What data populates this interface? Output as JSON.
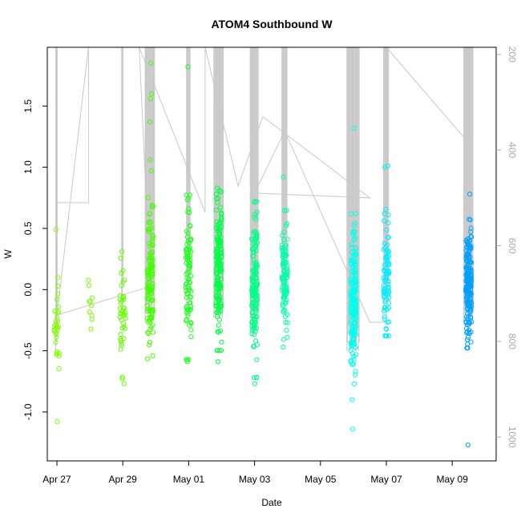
{
  "chart_data": {
    "type": "scatter",
    "title": "ATOM4 Southbound W",
    "xlabel": "Date",
    "ylabel": "W",
    "x_axis": {
      "type": "date",
      "min": "2023-04-26T17:00",
      "max": "2023-05-10T08:00",
      "ticks": [
        {
          "value": "2023-04-27",
          "label": "Apr 27"
        },
        {
          "value": "2023-04-29",
          "label": "Apr 29"
        },
        {
          "value": "2023-05-01",
          "label": "May 01"
        },
        {
          "value": "2023-05-03",
          "label": "May 03"
        },
        {
          "value": "2023-05-05",
          "label": "May 05"
        },
        {
          "value": "2023-05-07",
          "label": "May 07"
        },
        {
          "value": "2023-05-09",
          "label": "May 09"
        }
      ]
    },
    "y_axis": {
      "min": -1.4,
      "max": 1.98,
      "ticks": [
        -1.0,
        -0.5,
        0.0,
        0.5,
        1.0,
        1.5
      ]
    },
    "y2_axis": {
      "min": 1050,
      "max": 185,
      "reversed": true,
      "ticks": [
        200,
        400,
        600,
        800,
        1000
      ],
      "color": "#aaaaaa"
    },
    "grid": false,
    "legend": "none",
    "bursts": [
      {
        "t": "2023-04-27T00:00",
        "count": 32,
        "mean": -0.25,
        "sd": 0.25,
        "outliers": [
          0.49,
          -1.08
        ],
        "color": "#80ff00"
      },
      {
        "t": "2023-04-28T00:00",
        "count": 10,
        "mean": -0.2,
        "sd": 0.18,
        "outliers": [],
        "color": "#77ff00"
      },
      {
        "t": "2023-04-29T00:00",
        "count": 40,
        "mean": -0.15,
        "sd": 0.28,
        "outliers": [
          0.31,
          -0.77
        ],
        "color": "#66ff00"
      },
      {
        "t": "2023-04-29T20:00",
        "count": 120,
        "mean": 0.08,
        "sd": 0.28,
        "outliers": [
          1.85,
          1.6,
          1.56,
          1.37,
          1.06,
          0.97
        ],
        "color": "#44ff00"
      },
      {
        "t": "2023-05-01T00:00",
        "count": 90,
        "mean": 0.1,
        "sd": 0.28,
        "outliers": [
          1.82,
          0.66,
          -0.59
        ],
        "color": "#22ff22"
      },
      {
        "t": "2023-05-01T22:00",
        "count": 160,
        "mean": 0.15,
        "sd": 0.27,
        "outliers": [
          0.83,
          0.81,
          -0.59
        ],
        "color": "#00ff44"
      },
      {
        "t": "2023-05-03T00:00",
        "count": 150,
        "mean": 0.0,
        "sd": 0.3,
        "outliers": [
          0.59,
          -0.77
        ],
        "color": "#00ff88"
      },
      {
        "t": "2023-05-03T22:00",
        "count": 100,
        "mean": 0.12,
        "sd": 0.22,
        "outliers": [
          0.92,
          -0.47
        ],
        "color": "#00ffaa"
      },
      {
        "t": "2023-05-06T00:00",
        "count": 190,
        "mean": -0.1,
        "sd": 0.3,
        "outliers": [
          1.32,
          -1.14,
          -0.9
        ],
        "color": "#00ffee"
      },
      {
        "t": "2023-05-07T00:00",
        "count": 80,
        "mean": 0.15,
        "sd": 0.22,
        "outliers": [
          1.0,
          1.01,
          -0.32
        ],
        "color": "#00eeff"
      },
      {
        "t": "2023-05-09T12:00",
        "count": 200,
        "mean": 0.05,
        "sd": 0.22,
        "outliers": [
          0.78,
          -0.36,
          -1.27
        ],
        "color": "#00a0ff"
      }
    ],
    "depth_trace": {
      "color": "#c8c8c8",
      "path": [
        {
          "t": "2023-04-27T00:00",
          "d": 185
        },
        {
          "t": "2023-04-27T00:00",
          "d": 510
        },
        {
          "t": "2023-04-27T23:00",
          "d": 510
        },
        {
          "t": "2023-04-27T23:00",
          "d": 185
        },
        {
          "t": "2023-04-27T00:00",
          "d": 745
        },
        {
          "t": "2023-04-29T20:00",
          "d": 685
        },
        {
          "t": "2023-04-29T12:00",
          "d": 185
        },
        {
          "t": "2023-05-01T12:00",
          "d": 530
        },
        {
          "t": "2023-05-01T12:00",
          "d": 185
        },
        {
          "t": "2023-05-02T12:00",
          "d": 475
        },
        {
          "t": "2023-05-03T06:00",
          "d": 330
        },
        {
          "t": "2023-05-06T12:00",
          "d": 500
        },
        {
          "t": "2023-05-03T00:00",
          "d": 490
        },
        {
          "t": "2023-05-03T22:00",
          "d": 360
        },
        {
          "t": "2023-05-06T12:00",
          "d": 760
        },
        {
          "t": "2023-05-07T00:00",
          "d": 760
        },
        {
          "t": "2023-05-07T00:00",
          "d": 185
        },
        {
          "t": "2023-05-09T12:00",
          "d": 385
        },
        {
          "t": "2023-05-09T12:00",
          "d": 185
        }
      ],
      "casts": [
        {
          "t": "2023-04-27T00:00",
          "top": 185,
          "bottom": 820,
          "n": 3
        },
        {
          "t": "2023-04-29T00:00",
          "top": 185,
          "bottom": 720,
          "n": 3
        },
        {
          "t": "2023-04-29T20:00",
          "top": 185,
          "bottom": 760,
          "n": 14
        },
        {
          "t": "2023-05-01T00:00",
          "top": 185,
          "bottom": 720,
          "n": 6
        },
        {
          "t": "2023-05-01T22:00",
          "top": 185,
          "bottom": 750,
          "n": 14
        },
        {
          "t": "2023-05-03T00:00",
          "top": 185,
          "bottom": 780,
          "n": 12
        },
        {
          "t": "2023-05-03T22:00",
          "top": 185,
          "bottom": 720,
          "n": 8
        },
        {
          "t": "2023-05-06T00:00",
          "top": 185,
          "bottom": 820,
          "n": 18
        },
        {
          "t": "2023-05-07T00:00",
          "top": 185,
          "bottom": 740,
          "n": 8
        },
        {
          "t": "2023-05-09T12:00",
          "top": 185,
          "bottom": 760,
          "n": 14
        }
      ]
    }
  }
}
